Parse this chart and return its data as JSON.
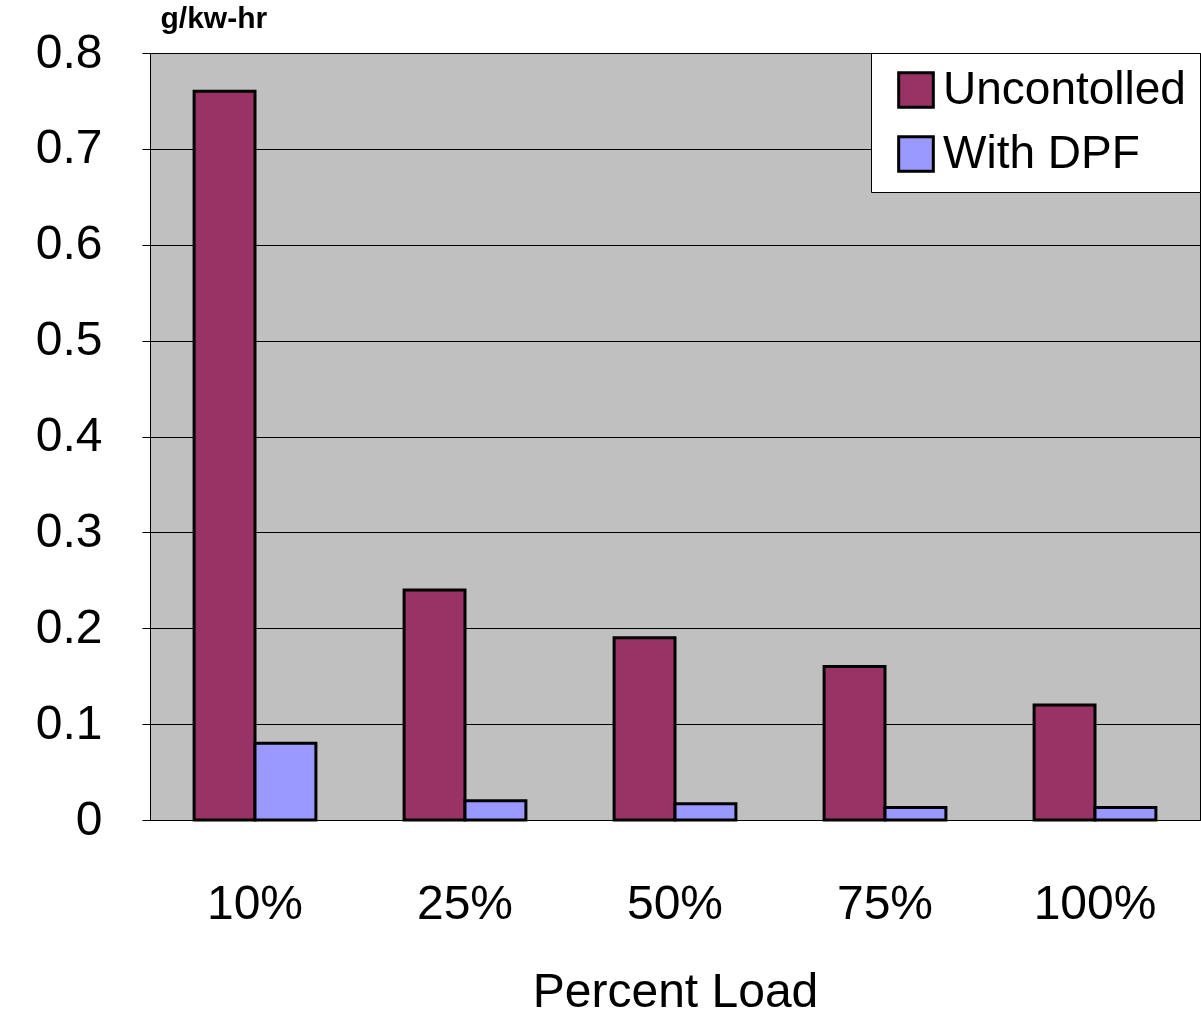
{
  "chart_data": {
    "type": "bar",
    "ylabel": "g/kw-hr",
    "xlabel": "Percent Load",
    "categories": [
      "10%",
      "25%",
      "50%",
      "75%",
      "100%"
    ],
    "series": [
      {
        "name": "Uncontolled",
        "color": "#993366",
        "values": [
          0.76,
          0.24,
          0.19,
          0.16,
          0.12
        ]
      },
      {
        "name": "With DPF",
        "color": "#9999ff",
        "values": [
          0.08,
          0.02,
          0.017,
          0.013,
          0.013
        ]
      }
    ],
    "ylim": [
      0,
      0.8
    ],
    "yticks": [
      0,
      0.1,
      0.2,
      0.3,
      0.4,
      0.5,
      0.6,
      0.7,
      0.8
    ],
    "grid": "y",
    "legend": "top right"
  }
}
